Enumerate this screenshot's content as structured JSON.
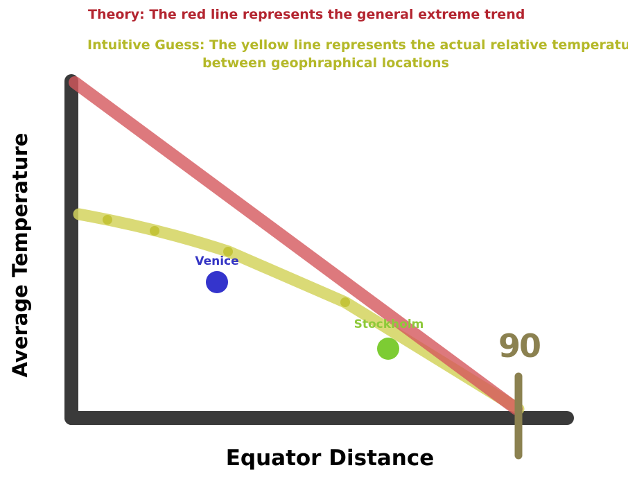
{
  "notes": {
    "theory": "Theory: The red line represents the general extreme trend",
    "guess_line1": "Intuitive Guess: The yellow line represents the actual relative temperature",
    "guess_line2": "between geophraphical locations"
  },
  "axes": {
    "y_label": "Average Temperature",
    "x_label": "Equator Distance",
    "end_marker": "90"
  },
  "cities": [
    {
      "name": "Venice",
      "color": "#3434cc"
    },
    {
      "name": "Stockholm",
      "color": "#7dcc33"
    }
  ],
  "colors": {
    "theory_line": "#d96a6e",
    "guess_line": "#d4d45e",
    "axis": "#3a3a3a",
    "marker": "#8b8150"
  }
}
